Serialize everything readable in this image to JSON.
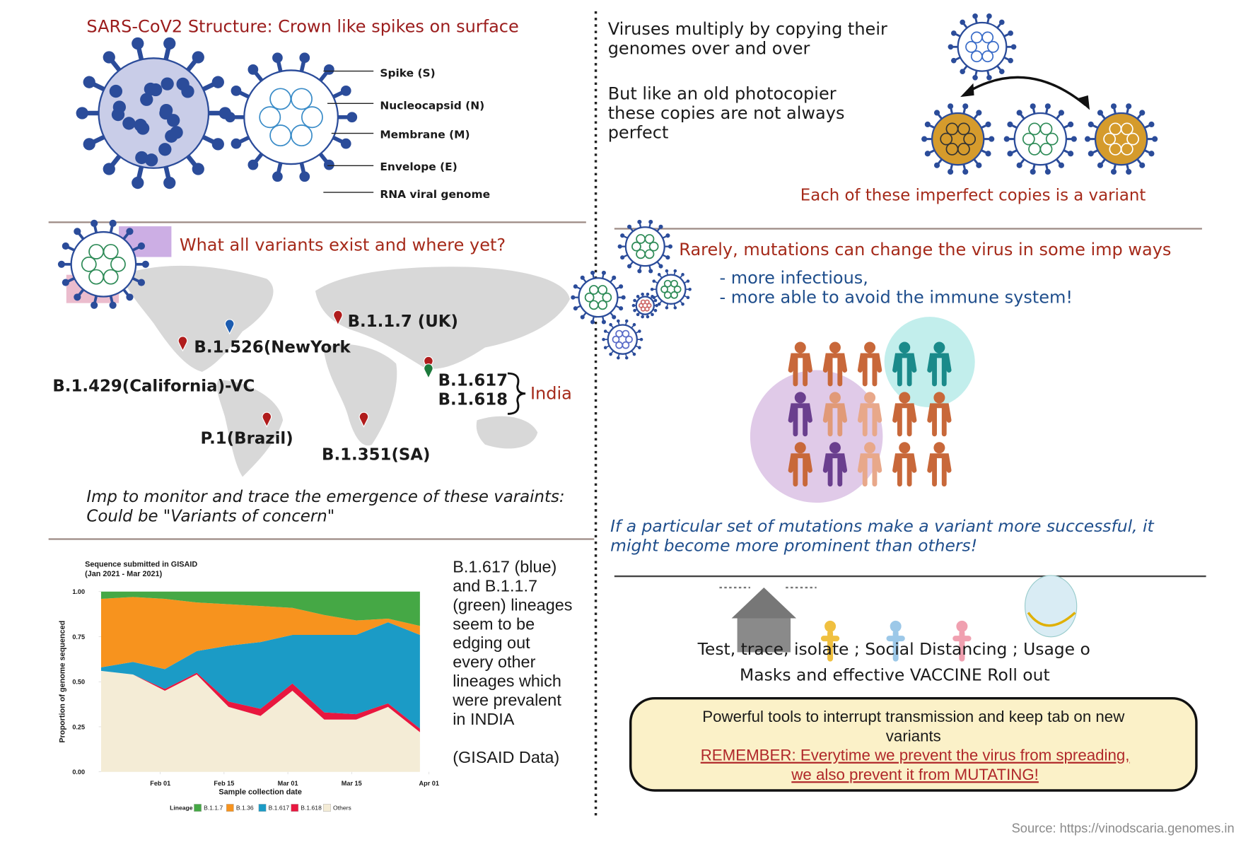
{
  "structure": {
    "title": "SARS-CoV2 Structure: Crown like spikes on surface",
    "labels": [
      "Spike (S)",
      "Nucleocapsid (N)",
      "Membrane (M)",
      "Envelope (E)",
      "RNA viral genome"
    ]
  },
  "replication": {
    "lines": [
      "Viruses multiply by copying their",
      "genomes over and over"
    ],
    "imperfect": [
      "But like an old photocopier",
      "these copies are not always",
      "perfect"
    ],
    "caption": "Each of these imperfect copies is a variant"
  },
  "variants": {
    "title": "What all variants exist and where yet?",
    "labels": [
      "B.1.1.7 (UK)",
      "B.1.526(NewYork",
      "B.1.429(California)-VC",
      "B.1.617",
      "B.1.618",
      "P.1(Brazil)",
      "B.1.351(SA)"
    ],
    "india": "India",
    "note": [
      "Imp to monitor and trace the emergence of these varaints:",
      "Could be \"Variants of concern\""
    ]
  },
  "mutations": {
    "title": "Rarely, mutations can change the virus in some imp ways",
    "bullets": [
      "- more infectious,",
      "- more able to avoid the immune system!"
    ],
    "conclusion": [
      "If a particular set of mutations make a variant more successful, it",
      "might become more prominent than others!"
    ]
  },
  "chart_note": {
    "lines": [
      "B.1.617 (blue)",
      "and B.1.1.7",
      "(green) lineages",
      "seem to be",
      "edging out",
      "every other",
      "lineages which",
      "were prevalent",
      "in INDIA"
    ],
    "source": "(GISAID Data)"
  },
  "measures": {
    "lines": [
      "Test, trace, isolate ; Social Distancing ; Usage o",
      "Masks and effective VACCINE Roll out"
    ],
    "box": [
      "Powerful tools to interrupt transmission and  keep tab on new",
      "variants"
    ],
    "reminder": [
      "REMEMBER: Everytime we prevent the virus from spreading,",
      "we also prevent it from MUTATING!"
    ]
  },
  "source": "Source: https://vinodscaria.genomes.in",
  "chart_data": {
    "type": "stacked-area",
    "title": "Sequence submitted in GISAID",
    "subtitle": "(Jan 2021 - Mar 2021)",
    "x_label": "Sample collection date",
    "y_label": "Proportion of genome sequenced",
    "legend_title": "Lineage",
    "x": [
      19,
      26,
      33,
      40,
      47,
      54,
      61,
      68,
      75,
      82,
      89
    ],
    "xlim": [
      19,
      93
    ],
    "xticks": [
      {
        "value": 32,
        "label": "Feb 01"
      },
      {
        "value": 46,
        "label": "Feb 15"
      },
      {
        "value": 60,
        "label": "Mar 01"
      },
      {
        "value": 74,
        "label": "Mar 15"
      },
      {
        "value": 91,
        "label": "Apr 01"
      }
    ],
    "ylim": [
      0,
      1
    ],
    "yticks": [
      {
        "value": 0,
        "label": "0.00"
      },
      {
        "value": 0.25,
        "label": "0.25"
      },
      {
        "value": 0.5,
        "label": "0.50"
      },
      {
        "value": 0.75,
        "label": "0.75"
      },
      {
        "value": 1,
        "label": "1.00"
      }
    ],
    "series": [
      {
        "name": "B.1.1.7",
        "color": "#45a845",
        "values": [
          0.04,
          0.03,
          0.04,
          0.06,
          0.07,
          0.08,
          0.09,
          0.13,
          0.16,
          0.15,
          0.19
        ]
      },
      {
        "name": "B.1.36",
        "color": "#f7931e",
        "values": [
          0.38,
          0.36,
          0.39,
          0.27,
          0.23,
          0.2,
          0.15,
          0.11,
          0.08,
          0.02,
          0.05
        ]
      },
      {
        "name": "B.1.617",
        "color": "#1b9bc6",
        "values": [
          0.02,
          0.07,
          0.11,
          0.12,
          0.31,
          0.37,
          0.27,
          0.43,
          0.44,
          0.45,
          0.52
        ]
      },
      {
        "name": "B.1.618",
        "color": "#e8173f",
        "values": [
          0,
          0,
          0.01,
          0.01,
          0.03,
          0.04,
          0.04,
          0.04,
          0.03,
          0.02,
          0.02
        ]
      },
      {
        "name": "Others",
        "color": "#f4ecd6",
        "values": [
          0.56,
          0.54,
          0.45,
          0.54,
          0.36,
          0.31,
          0.45,
          0.29,
          0.29,
          0.36,
          0.22
        ]
      }
    ]
  }
}
